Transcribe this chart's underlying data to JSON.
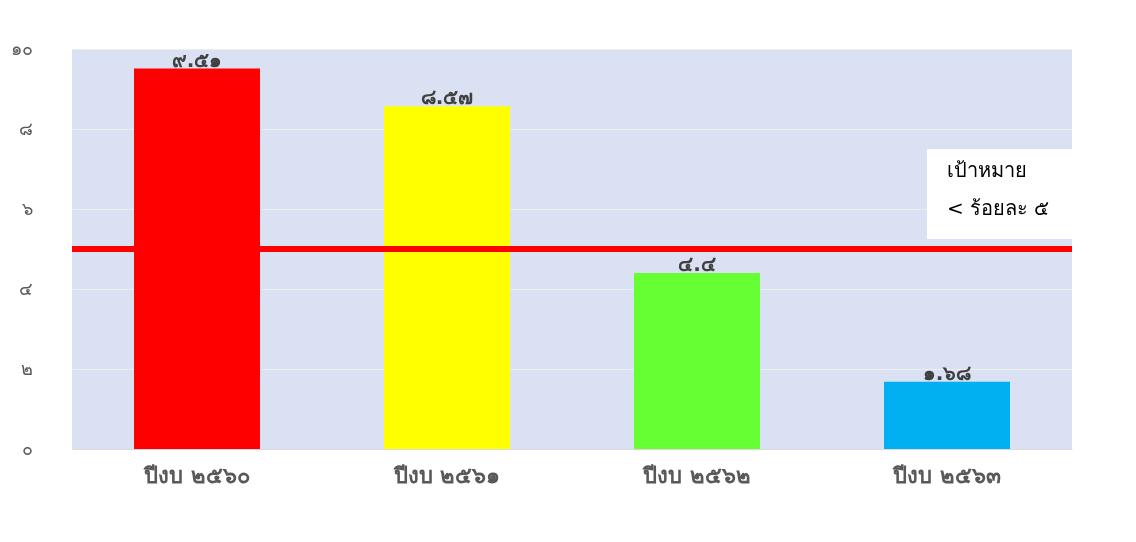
{
  "chart_data": {
    "type": "bar",
    "categories": [
      "ปีงบ ๒๕๖๐",
      "ปีงบ ๒๕๖๑",
      "ปีงบ ๒๕๖๒",
      "ปีงบ ๒๕๖๓"
    ],
    "values": [
      9.51,
      8.57,
      4.4,
      1.68
    ],
    "colors": [
      "#ff0000",
      "#ffff00",
      "#66ff33",
      "#00b0f0"
    ],
    "value_labels": [
      "๙.๕๑",
      "๘.๕๗",
      "๔.๔",
      "๑.๖๘"
    ],
    "ylim": [
      0,
      10
    ],
    "yticks": [
      {
        "value": 0,
        "label": "๐"
      },
      {
        "value": 2,
        "label": "๒"
      },
      {
        "value": 4,
        "label": "๔"
      },
      {
        "value": 6,
        "label": "๖"
      },
      {
        "value": 8,
        "label": "๘"
      },
      {
        "value": 10,
        "label": "๑๐"
      }
    ],
    "ref_lines": [
      {
        "axis": "y",
        "value": 5,
        "label": "เป้าหมาย\n< ร้อยละ ๕",
        "color": "#ff0000",
        "line_style": "solid"
      }
    ],
    "grid": "y"
  }
}
